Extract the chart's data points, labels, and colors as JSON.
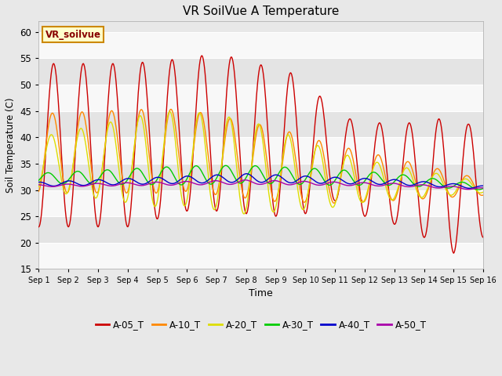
{
  "title": "VR SoilVue A Temperature",
  "xlabel": "Time",
  "ylabel": "Soil Temperature (C)",
  "ylim": [
    15,
    62
  ],
  "yticks": [
    15,
    20,
    25,
    30,
    35,
    40,
    45,
    50,
    55,
    60
  ],
  "fig_bg_color": "#e8e8e8",
  "plot_bg_color": "#f0f0f0",
  "band_light": "#f8f8f8",
  "band_dark": "#e4e4e4",
  "annotation_text": "VR_soilvue",
  "annotation_bg": "#ffffcc",
  "annotation_border": "#cc8800",
  "annotation_text_color": "#880000",
  "series_colors": {
    "A-05_T": "#cc0000",
    "A-10_T": "#ff8800",
    "A-20_T": "#dddd00",
    "A-30_T": "#00cc00",
    "A-40_T": "#0000cc",
    "A-50_T": "#aa00aa"
  },
  "num_points": 720
}
